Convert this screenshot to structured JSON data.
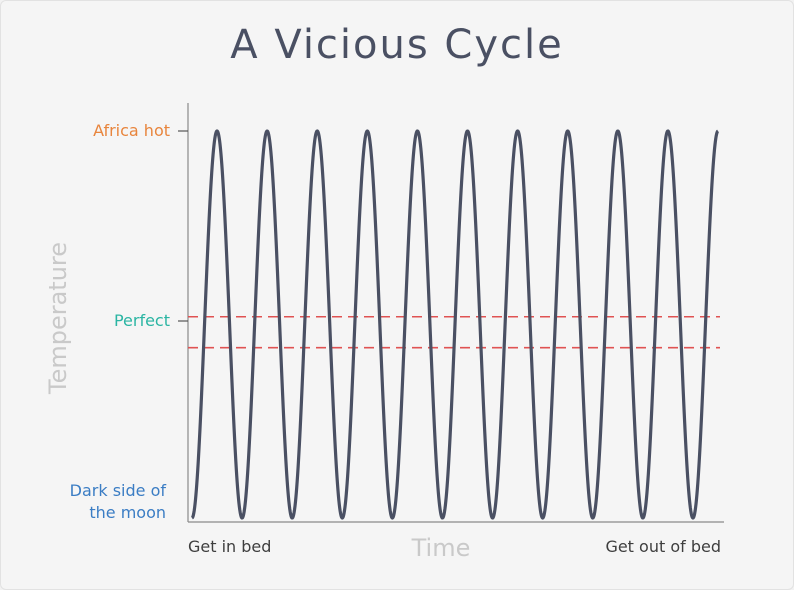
{
  "chart_data": {
    "type": "line",
    "title": "A Vicious Cycle",
    "xlabel": "Time",
    "ylabel": "Temperature",
    "x_tick_labels": [
      "Get in bed",
      "Get out of bed"
    ],
    "y_tick_labels": [
      {
        "label": "Africa hot",
        "color": "#e8853d"
      },
      {
        "label": "Perfect",
        "color": "#2bb5a3"
      },
      {
        "label": "Dark side of the moon",
        "color": "#3b7dc4"
      }
    ],
    "ylim": [
      0,
      1
    ],
    "cycles": 10.5,
    "series": [
      {
        "color": "#4a5063",
        "x": [
          0,
          1
        ],
        "y_range": [
          0,
          1
        ]
      }
    ],
    "comfort_band": {
      "y": [
        0.44,
        0.52
      ],
      "color": "#e05252"
    },
    "grid": false
  }
}
